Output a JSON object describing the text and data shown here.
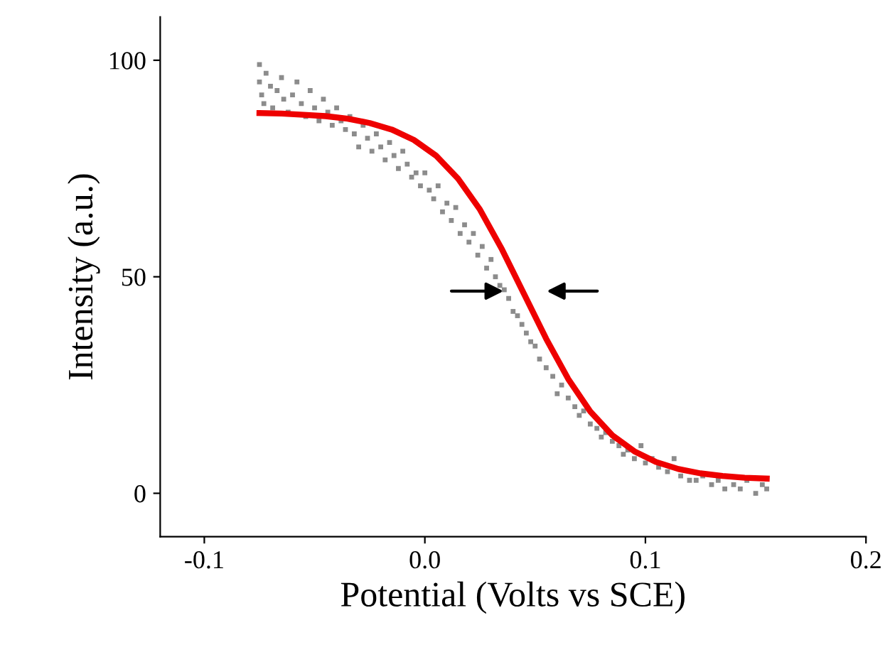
{
  "chart_data": {
    "type": "scatter",
    "xlabel": "Potential (Volts vs SCE)",
    "ylabel": "Intensity (a.u.)",
    "xlim": [
      -0.12,
      0.2
    ],
    "xticks": [
      {
        "value": -0.1,
        "label": "-0.1"
      },
      {
        "value": 0.0,
        "label": "0.0"
      },
      {
        "value": 0.1,
        "label": "0.1"
      },
      {
        "value": 0.2,
        "label": "0.2"
      }
    ],
    "ylim": [
      -10,
      110
    ],
    "yticks": [
      0,
      50,
      100
    ],
    "grid": false,
    "series": [
      {
        "color": "#8c8c8c",
        "marker": "square",
        "x": [
          -0.075,
          -0.075,
          -0.074,
          -0.073,
          -0.072,
          -0.07,
          -0.069,
          -0.067,
          -0.065,
          -0.064,
          -0.062,
          -0.06,
          -0.058,
          -0.056,
          -0.054,
          -0.052,
          -0.05,
          -0.048,
          -0.046,
          -0.044,
          -0.042,
          -0.04,
          -0.038,
          -0.036,
          -0.034,
          -0.032,
          -0.03,
          -0.028,
          -0.026,
          -0.024,
          -0.022,
          -0.02,
          -0.018,
          -0.016,
          -0.014,
          -0.012,
          -0.01,
          -0.008,
          -0.006,
          -0.004,
          -0.002,
          0.0,
          0.002,
          0.004,
          0.006,
          0.008,
          0.01,
          0.012,
          0.014,
          0.016,
          0.018,
          0.02,
          0.022,
          0.024,
          0.026,
          0.028,
          0.03,
          0.032,
          0.034,
          0.036,
          0.038,
          0.04,
          0.042,
          0.044,
          0.046,
          0.048,
          0.05,
          0.052,
          0.055,
          0.058,
          0.06,
          0.062,
          0.065,
          0.068,
          0.07,
          0.072,
          0.075,
          0.078,
          0.08,
          0.082,
          0.085,
          0.088,
          0.09,
          0.092,
          0.095,
          0.098,
          0.1,
          0.103,
          0.106,
          0.11,
          0.113,
          0.116,
          0.12,
          0.123,
          0.126,
          0.13,
          0.133,
          0.136,
          0.14,
          0.143,
          0.146,
          0.15,
          0.153,
          0.155
        ],
        "values": [
          99,
          95,
          92,
          90,
          97,
          94,
          89,
          93,
          96,
          91,
          88,
          92,
          95,
          90,
          87,
          93,
          89,
          86,
          91,
          88,
          85,
          89,
          86,
          84,
          87,
          83,
          80,
          85,
          82,
          79,
          83,
          80,
          77,
          81,
          78,
          75,
          79,
          76,
          73,
          74,
          71,
          74,
          70,
          68,
          71,
          65,
          67,
          63,
          66,
          60,
          62,
          58,
          60,
          55,
          57,
          52,
          54,
          50,
          48,
          47,
          45,
          42,
          41,
          39,
          37,
          35,
          34,
          31,
          29,
          27,
          23,
          25,
          22,
          20,
          18,
          19,
          16,
          15,
          13,
          14,
          12,
          11,
          9,
          10,
          8,
          11,
          7,
          8,
          6,
          5,
          8,
          4,
          3,
          3,
          4,
          2,
          3,
          1,
          2,
          1,
          3,
          0,
          2,
          1
        ]
      },
      {
        "type": "line",
        "color": "#ee0000",
        "line_style": "solid",
        "marker": "none",
        "x": [
          -0.075,
          -0.065,
          -0.055,
          -0.045,
          -0.035,
          -0.025,
          -0.015,
          -0.005,
          0.005,
          0.015,
          0.025,
          0.035,
          0.045,
          0.055,
          0.065,
          0.075,
          0.085,
          0.095,
          0.105,
          0.115,
          0.125,
          0.135,
          0.145,
          0.155
        ],
        "values": [
          87.8,
          87.7,
          87.4,
          87.1,
          86.5,
          85.5,
          84.0,
          81.6,
          78.0,
          72.7,
          65.5,
          56.3,
          46.0,
          35.7,
          26.4,
          18.9,
          13.4,
          9.7,
          7.2,
          5.6,
          4.6,
          4.0,
          3.6,
          3.4
        ]
      }
    ]
  }
}
